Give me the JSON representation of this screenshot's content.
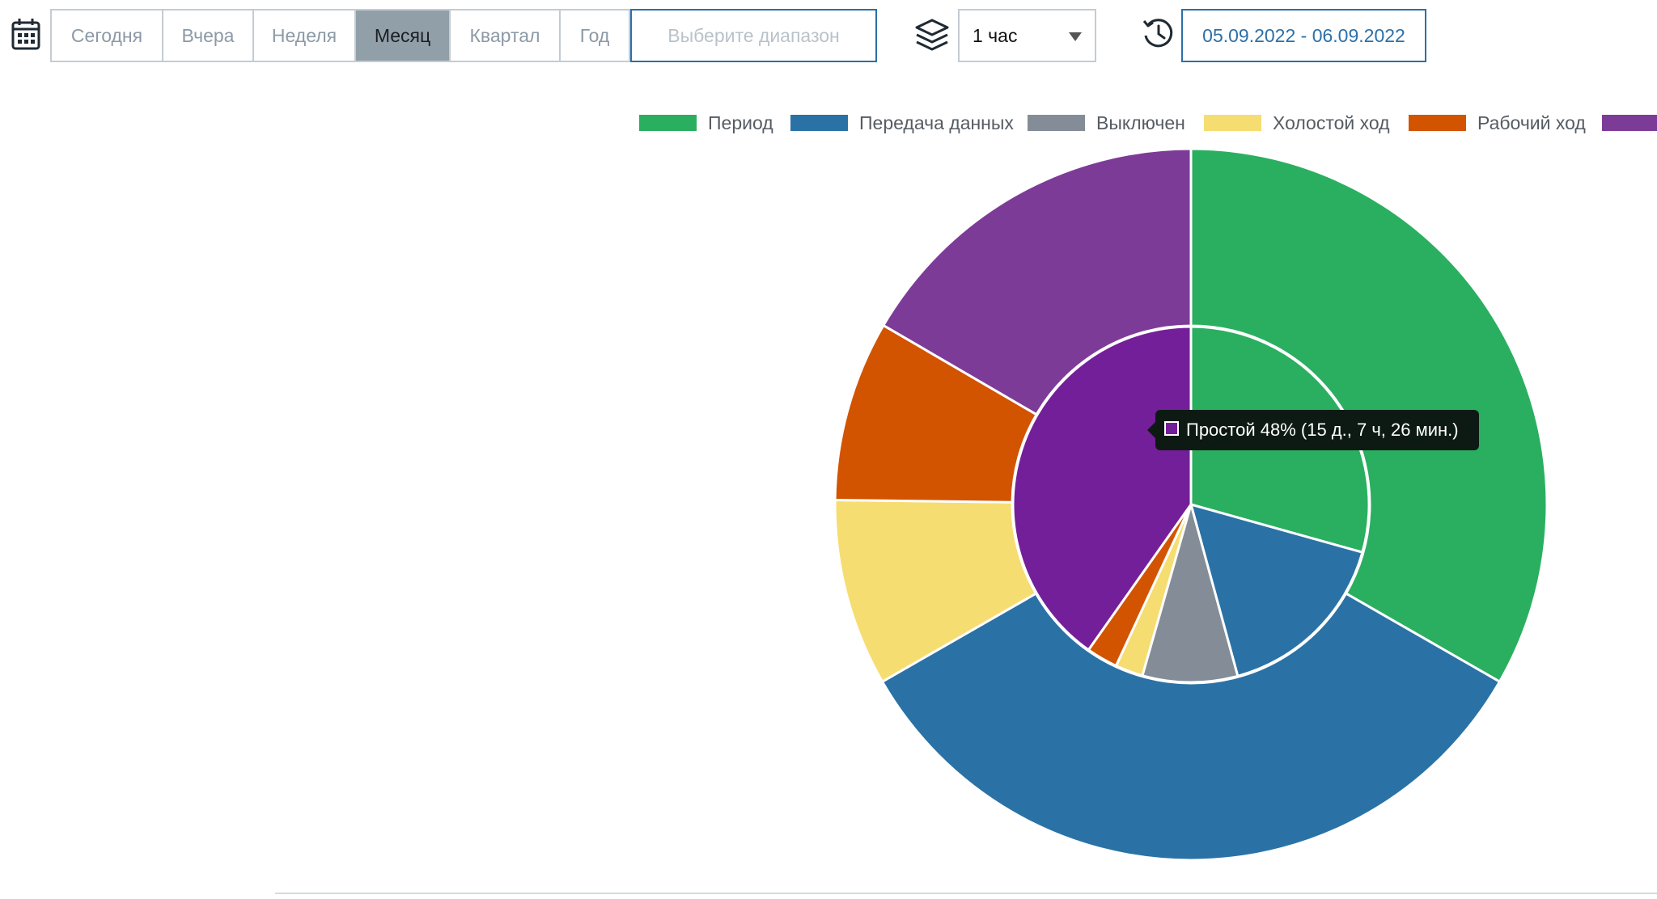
{
  "toolbar": {
    "calendar_icon": "calendar-icon",
    "periods": [
      {
        "label": "Сегодня",
        "active": false
      },
      {
        "label": "Вчера",
        "active": false
      },
      {
        "label": "Неделя",
        "active": false
      },
      {
        "label": "Месяц",
        "active": true
      },
      {
        "label": "Квартал",
        "active": false
      },
      {
        "label": "Год",
        "active": false
      }
    ],
    "range_placeholder": "Выберите диапазон",
    "layers_icon": "layers-icon",
    "interval_value": "1 час",
    "history_icon": "history-icon",
    "date_range": "05.09.2022 - 06.09.2022"
  },
  "tooltip": {
    "text": "Простой 48% (15 д., 7 ч, 26 мин.)",
    "swatch_color": "#741f9a"
  },
  "chart_data": {
    "type": "pie",
    "variant": "nested-donut",
    "legend_position": "top",
    "legend": [
      {
        "label": "Период",
        "color": "#2aaf60"
      },
      {
        "label": "Передача данных",
        "color": "#2a72a6"
      },
      {
        "label": "Выключен",
        "color": "#848d97"
      },
      {
        "label": "Холостой ход",
        "color": "#f6dd72"
      },
      {
        "label": "Рабочий ход",
        "color": "#d25400"
      },
      {
        "label": "",
        "color": "#7d3b98"
      }
    ],
    "rings": [
      {
        "ring": "outer",
        "slices": [
          {
            "label": "Период",
            "value": 33.3,
            "color": "#2aaf60"
          },
          {
            "label": "Передача данных",
            "value": 33.4,
            "color": "#2a72a6"
          },
          {
            "label": "Холостой ход",
            "value": 8.5,
            "color": "#f6dd72"
          },
          {
            "label": "Рабочий ход",
            "value": 8.2,
            "color": "#d25400"
          },
          {
            "label": "",
            "value": 16.6,
            "color": "#7d3b98"
          }
        ]
      },
      {
        "ring": "inner",
        "slices": [
          {
            "label": "Период",
            "value": 35.0,
            "color": "#2aaf60"
          },
          {
            "label": "Передача данных",
            "value": 19.6,
            "color": "#2a72a6"
          },
          {
            "label": "Выключен",
            "value": 10.3,
            "color": "#848d97"
          },
          {
            "label": "Холостой ход",
            "value": 3.0,
            "color": "#f6dd72"
          },
          {
            "label": "Рабочий ход",
            "value": 3.4,
            "color": "#d25400"
          },
          {
            "label": "Простой",
            "value": 48,
            "color": "#741f9a"
          }
        ]
      }
    ]
  }
}
